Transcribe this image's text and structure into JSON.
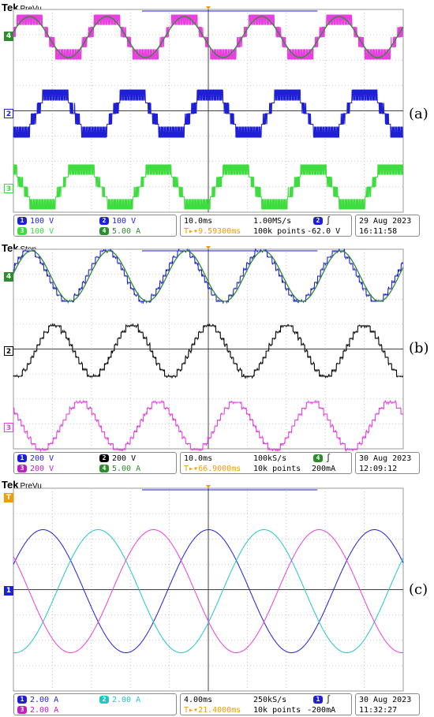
{
  "panels": [
    {
      "id": "a",
      "fig_label": "(a)",
      "brand": "Tek",
      "mode": "PreVu",
      "markers": [
        {
          "num": "4",
          "color": "#2e8b2e"
        },
        {
          "num": "2",
          "color": "#1f1fd6"
        },
        {
          "num": "3",
          "color": "#3fdc3f"
        }
      ],
      "trigger_marker": "T",
      "ch_rows": [
        [
          {
            "badge": "1",
            "color": "#1f1fd6",
            "text": "100 V"
          },
          {
            "badge": "2",
            "color": "#1f1fd6",
            "text": "100 V"
          }
        ],
        [
          {
            "badge": "3",
            "color": "#3fdc3f",
            "text": "100 V"
          },
          {
            "badge": "4",
            "color": "#2e8b2e",
            "text": "5.00 A"
          }
        ]
      ],
      "timebase": "10.0ms",
      "sample_rate": "1.00MS/s",
      "delay": "9.59300ms",
      "record": "100k points",
      "trigger_badge": "2",
      "trigger_color": "#1f1fd6",
      "trigger_level": "-62.0 V",
      "date": "29 Aug 2023",
      "time": "16:11:58",
      "chart_data": {
        "type": "line",
        "description_axis": "oscilloscope traces",
        "divisions": {
          "horizontal": 10,
          "vertical": 8
        },
        "series": [
          {
            "channel": "1",
            "kind": "pwm-multilevel",
            "color": "#e83fe0",
            "levels": 3
          },
          {
            "channel": "4",
            "kind": "sine",
            "color": "#2e8b2e",
            "cycles": 5
          },
          {
            "channel": "2",
            "kind": "pwm-multilevel",
            "color": "#1f1fd6",
            "levels": 3
          },
          {
            "channel": "3",
            "kind": "pwm-multilevel",
            "color": "#3fdc3f",
            "levels": 3
          }
        ]
      }
    },
    {
      "id": "b",
      "fig_label": "(b)",
      "brand": "Tek",
      "mode": "Stop",
      "markers": [
        {
          "num": "4",
          "color": "#2e8b2e"
        },
        {
          "num": "2",
          "color": "#000000"
        },
        {
          "num": "3",
          "color": "#e83fe0"
        }
      ],
      "trigger_marker": "",
      "ch_rows": [
        [
          {
            "badge": "1",
            "color": "#1f1fd6",
            "text": "200 V"
          },
          {
            "badge": "2",
            "color": "#000000",
            "text": "200 V"
          }
        ],
        [
          {
            "badge": "3",
            "color": "#c020c0",
            "text": "200 V"
          },
          {
            "badge": "4",
            "color": "#2e8b2e",
            "text": "5.00 A"
          }
        ]
      ],
      "timebase": "10.0ms",
      "sample_rate": "100kS/s",
      "delay": "66.9000ms",
      "record": "10k points",
      "trigger_badge": "4",
      "trigger_color": "#2e8b2e",
      "trigger_level": "200mA",
      "date": "30 Aug 2023",
      "time": "12:09:12",
      "chart_data": {
        "type": "line",
        "description_axis": "oscilloscope traces",
        "divisions": {
          "horizontal": 10,
          "vertical": 8
        },
        "series": [
          {
            "channel": "1",
            "kind": "staircase-multilevel",
            "color": "#1f1fd6",
            "levels": 9
          },
          {
            "channel": "4",
            "kind": "sine",
            "color": "#2e8b2e",
            "cycles": 5
          },
          {
            "channel": "2",
            "kind": "staircase-multilevel",
            "color": "#000000",
            "levels": 9
          },
          {
            "channel": "3",
            "kind": "staircase-multilevel",
            "color": "#e83fe0",
            "levels": 9
          }
        ]
      }
    },
    {
      "id": "c",
      "fig_label": "(c)",
      "brand": "Tek",
      "mode": "PreVu",
      "markers": [
        {
          "num": "T",
          "color": "#f39c00"
        },
        {
          "num": "1",
          "color": "#1f1fd6"
        }
      ],
      "trigger_marker": "T",
      "ch_rows": [
        [
          {
            "badge": "1",
            "color": "#1f1fd6",
            "text": "2.00 A"
          },
          {
            "badge": "2",
            "color": "#22c6c6",
            "text": "2.00 A"
          }
        ],
        [
          {
            "badge": "3",
            "color": "#c020c0",
            "text": "2.00 A"
          }
        ]
      ],
      "timebase": "4.00ms",
      "sample_rate": "250kS/s",
      "delay": "21.4000ms",
      "record": "10k points",
      "trigger_badge": "1",
      "trigger_color": "#1f1fd6",
      "trigger_level": "-200mA",
      "date": "30 Aug 2023",
      "time": "11:32:27",
      "chart_data": {
        "type": "line",
        "description_axis": "oscilloscope traces",
        "divisions": {
          "horizontal": 10,
          "vertical": 8
        },
        "series": [
          {
            "channel": "1",
            "kind": "sine",
            "color": "#1f1fd6",
            "phase_deg": 0,
            "cycles": 2.4
          },
          {
            "channel": "2",
            "kind": "sine",
            "color": "#22c6c6",
            "phase_deg": 120,
            "cycles": 2.4
          },
          {
            "channel": "3",
            "kind": "sine",
            "color": "#e83fe0",
            "phase_deg": 240,
            "cycles": 2.4
          }
        ]
      }
    }
  ]
}
